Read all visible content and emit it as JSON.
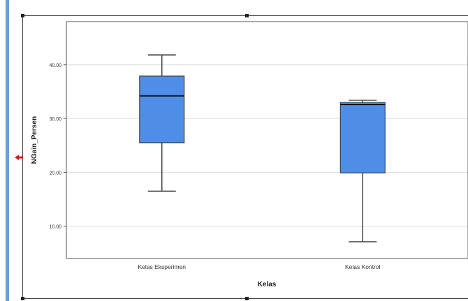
{
  "chart_data": {
    "type": "box",
    "xlabel": "Kelas",
    "ylabel": "NGain_Persen",
    "ylim": [
      4,
      48
    ],
    "yticks": [
      10,
      20,
      30,
      40
    ],
    "ytick_labels": [
      "10.00",
      "20.00",
      "30.00",
      "40.00"
    ],
    "grid": true,
    "box_color": "#4f8ee6",
    "categories": [
      "Kelas Eksperimen",
      "Kelas Kontrol"
    ],
    "boxes": [
      {
        "category": "Kelas Eksperimen",
        "min": 16.5,
        "q1": 25.5,
        "median": 34.2,
        "q3": 37.9,
        "max": 41.8
      },
      {
        "category": "Kelas Kontrol",
        "min": 7.1,
        "q1": 19.9,
        "median": 32.6,
        "q3": 33.0,
        "max": 33.4
      }
    ]
  },
  "colors": {
    "box_fill": "#4f8ee6",
    "grid": "#d9d9d9",
    "frame": "#555555",
    "selection_bar": "#6a9fd8",
    "marker": "#d21e1e"
  }
}
